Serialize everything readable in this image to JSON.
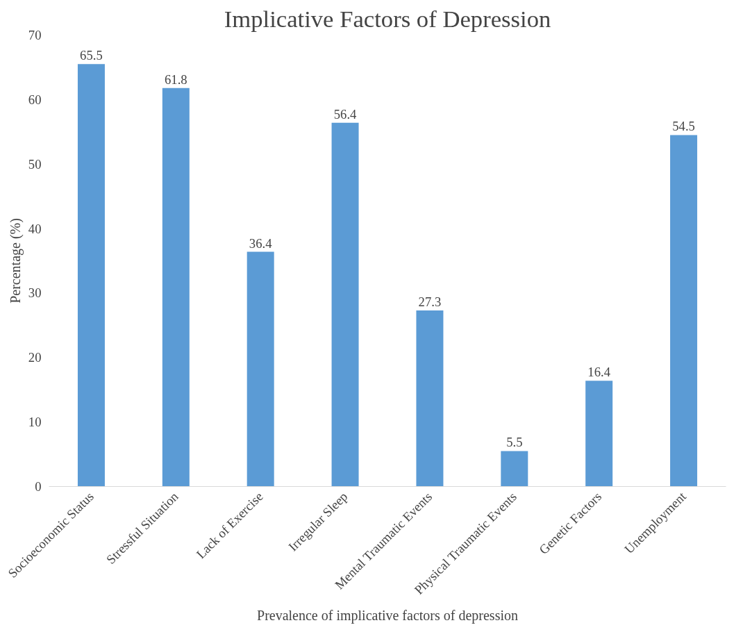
{
  "chart_data": {
    "type": "bar",
    "title": "Implicative Factors of Depression",
    "xlabel": "Prevalence of implicative factors of depression",
    "ylabel": "Percentage (%)",
    "categories": [
      "Socioeconomic Status",
      "Stressful Situation",
      "Lack of Exercise",
      "Irregular Sleep",
      "Mental Traumatic Events",
      "Physical Traumatic Events",
      "Genetic Factors",
      "Unemployment"
    ],
    "values": [
      65.5,
      61.8,
      36.4,
      56.4,
      27.3,
      5.5,
      16.4,
      54.5
    ],
    "color": "#5b9bd5",
    "ylim": [
      0,
      70
    ],
    "yticks": [
      0,
      10,
      20,
      30,
      40,
      50,
      60,
      70
    ],
    "grid": false,
    "data_labels": true
  }
}
